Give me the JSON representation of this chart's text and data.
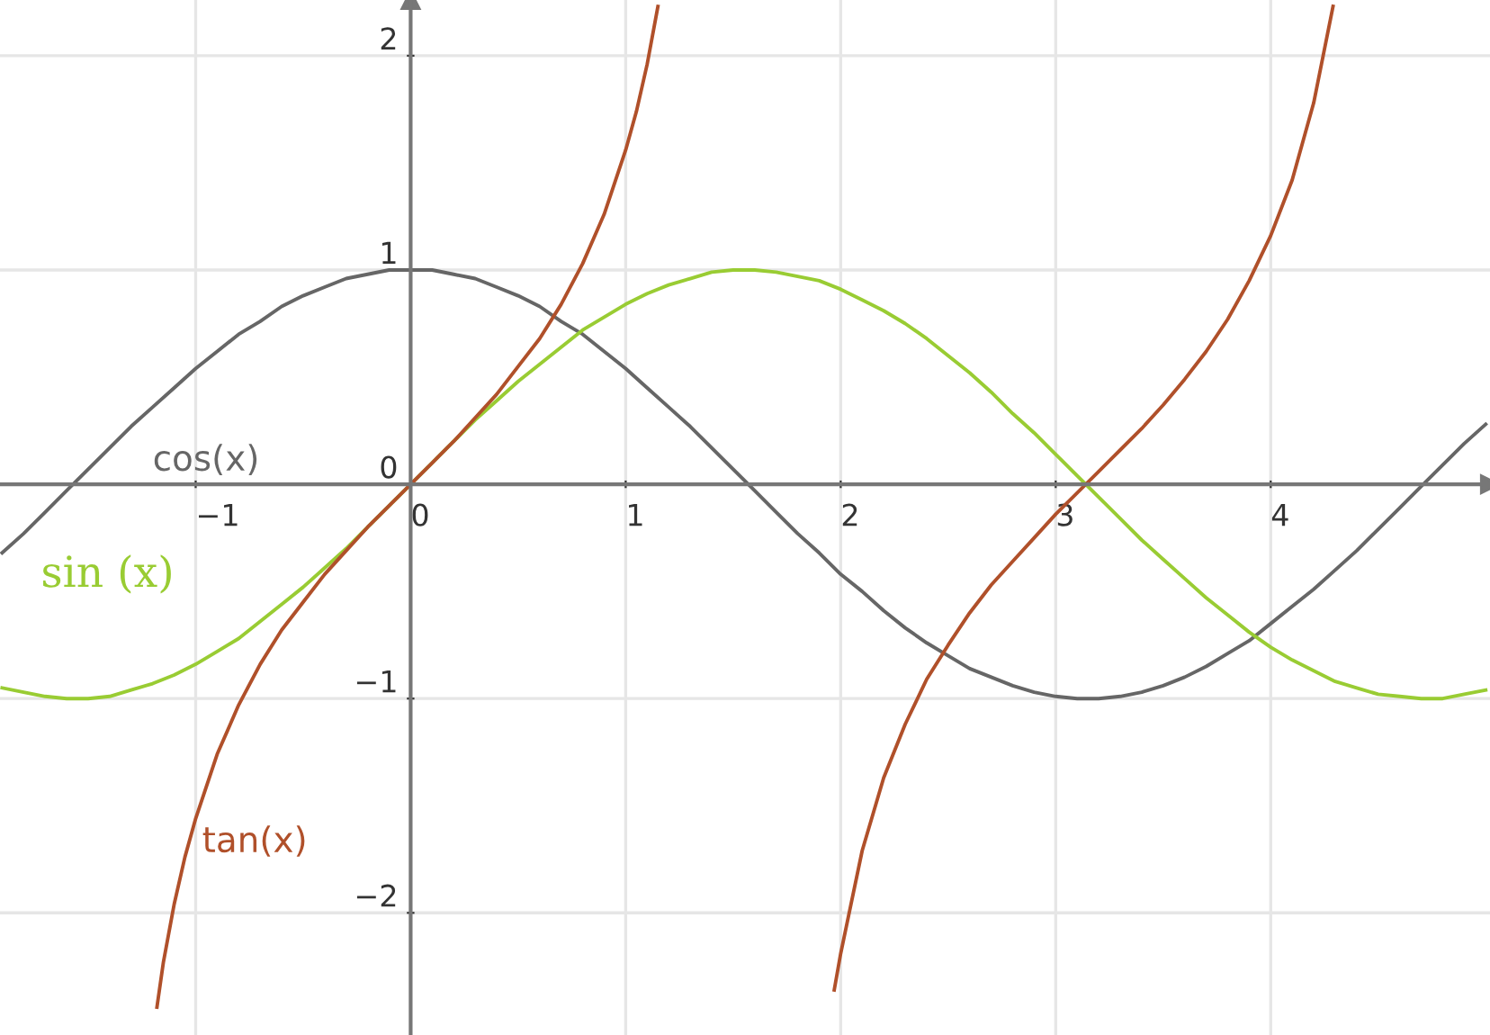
{
  "chart_data": {
    "type": "line",
    "xlim": [
      -1.91,
      5.02
    ],
    "ylim": [
      -2.57,
      2.26
    ],
    "xticks": [
      -1,
      0,
      1,
      2,
      3,
      4
    ],
    "yticks": [
      -2,
      -1,
      0,
      1,
      2
    ],
    "grid": true,
    "marker": "none",
    "line_style": "solid",
    "series": [
      {
        "name": "cos(x)",
        "color": "#666666",
        "x": [
          -1.9,
          -1.8,
          -1.7,
          -1.6,
          -1.5,
          -1.4,
          -1.3,
          -1.2,
          -1.1,
          -1.0,
          -0.9,
          -0.8,
          -0.7,
          -0.6,
          -0.5,
          -0.4,
          -0.3,
          -0.2,
          -0.1,
          0,
          0.1,
          0.2,
          0.3,
          0.4,
          0.5,
          0.6,
          0.7,
          0.8,
          0.9,
          1.0,
          1.1,
          1.2,
          1.3,
          1.4,
          1.5,
          1.6,
          1.7,
          1.8,
          1.9,
          2.0,
          2.1,
          2.2,
          2.3,
          2.4,
          2.5,
          2.6,
          2.7,
          2.8,
          2.9,
          3.0,
          3.1,
          3.2,
          3.3,
          3.4,
          3.5,
          3.6,
          3.7,
          3.8,
          3.9,
          4.0,
          4.1,
          4.2,
          4.3,
          4.4,
          4.5,
          4.6,
          4.7,
          4.8,
          4.9,
          5.0
        ],
        "values": [
          -0.32,
          -0.23,
          -0.13,
          -0.03,
          0.07,
          0.17,
          0.27,
          0.36,
          0.45,
          0.54,
          0.62,
          0.7,
          0.76,
          0.83,
          0.88,
          0.92,
          0.96,
          0.98,
          1.0,
          1.0,
          1.0,
          0.98,
          0.96,
          0.92,
          0.88,
          0.83,
          0.76,
          0.7,
          0.62,
          0.54,
          0.45,
          0.36,
          0.27,
          0.17,
          0.07,
          -0.03,
          -0.13,
          -0.23,
          -0.32,
          -0.42,
          -0.5,
          -0.59,
          -0.67,
          -0.74,
          -0.8,
          -0.86,
          -0.9,
          -0.94,
          -0.97,
          -0.99,
          -1.0,
          -1.0,
          -0.99,
          -0.97,
          -0.94,
          -0.9,
          -0.85,
          -0.79,
          -0.73,
          -0.65,
          -0.57,
          -0.49,
          -0.4,
          -0.31,
          -0.21,
          -0.11,
          -0.01,
          0.09,
          0.19,
          0.28
        ]
      },
      {
        "name": "sin (x)",
        "color": "#99cc33",
        "x": [
          -1.9,
          -1.8,
          -1.7,
          -1.6,
          -1.5,
          -1.4,
          -1.3,
          -1.2,
          -1.1,
          -1.0,
          -0.9,
          -0.8,
          -0.7,
          -0.6,
          -0.5,
          -0.4,
          -0.3,
          -0.2,
          -0.1,
          0,
          0.1,
          0.2,
          0.3,
          0.4,
          0.5,
          0.6,
          0.7,
          0.8,
          0.9,
          1.0,
          1.1,
          1.2,
          1.3,
          1.4,
          1.5,
          1.6,
          1.7,
          1.8,
          1.9,
          2.0,
          2.1,
          2.2,
          2.3,
          2.4,
          2.5,
          2.6,
          2.7,
          2.8,
          2.9,
          3.0,
          3.1,
          3.2,
          3.3,
          3.4,
          3.5,
          3.6,
          3.7,
          3.8,
          3.9,
          4.0,
          4.1,
          4.2,
          4.3,
          4.4,
          4.5,
          4.6,
          4.7,
          4.8,
          4.9,
          5.0
        ],
        "values": [
          -0.95,
          -0.97,
          -0.99,
          -1.0,
          -1.0,
          -0.99,
          -0.96,
          -0.93,
          -0.89,
          -0.84,
          -0.78,
          -0.72,
          -0.64,
          -0.56,
          -0.48,
          -0.39,
          -0.3,
          -0.2,
          -0.1,
          0,
          0.1,
          0.2,
          0.3,
          0.39,
          0.48,
          0.56,
          0.64,
          0.72,
          0.78,
          0.84,
          0.89,
          0.93,
          0.96,
          0.99,
          1.0,
          1.0,
          0.99,
          0.97,
          0.95,
          0.91,
          0.86,
          0.81,
          0.75,
          0.68,
          0.6,
          0.52,
          0.43,
          0.33,
          0.24,
          0.14,
          0.04,
          -0.06,
          -0.16,
          -0.26,
          -0.35,
          -0.44,
          -0.53,
          -0.61,
          -0.69,
          -0.76,
          -0.82,
          -0.87,
          -0.92,
          -0.95,
          -0.98,
          -0.99,
          -1.0,
          -1.0,
          -0.98,
          -0.96
        ]
      },
      {
        "name": "tan(x)",
        "color": "#b0502a",
        "x": [
          -1.18,
          -1.15,
          -1.1,
          -1.05,
          -1.0,
          -0.9,
          -0.8,
          -0.7,
          -0.6,
          -0.5,
          -0.4,
          -0.3,
          -0.2,
          -0.1,
          0,
          0.1,
          0.2,
          0.3,
          0.4,
          0.5,
          0.6,
          0.7,
          0.8,
          0.9,
          1.0,
          1.05,
          1.1,
          1.15,
          1.5,
          1.97,
          2.0,
          2.1,
          2.2,
          2.3,
          2.4,
          2.5,
          2.6,
          2.7,
          2.8,
          2.9,
          3.0,
          3.1,
          3.2,
          3.3,
          3.4,
          3.5,
          3.6,
          3.7,
          3.8,
          3.9,
          4.0,
          4.1,
          4.2,
          4.29
        ],
        "values": [
          -2.44,
          -2.23,
          -1.96,
          -1.74,
          -1.56,
          -1.26,
          -1.03,
          -0.84,
          -0.68,
          -0.55,
          -0.42,
          -0.31,
          -0.2,
          -0.1,
          0,
          0.1,
          0.2,
          0.31,
          0.42,
          0.55,
          0.68,
          0.84,
          1.03,
          1.26,
          1.56,
          1.74,
          1.96,
          2.23,
          null,
          -2.36,
          -2.19,
          -1.71,
          -1.37,
          -1.12,
          -0.91,
          -0.75,
          -0.6,
          -0.47,
          -0.36,
          -0.25,
          -0.14,
          -0.04,
          0.06,
          0.16,
          0.26,
          0.37,
          0.49,
          0.62,
          0.77,
          0.95,
          1.16,
          1.42,
          1.78,
          2.23
        ]
      }
    ]
  }
}
